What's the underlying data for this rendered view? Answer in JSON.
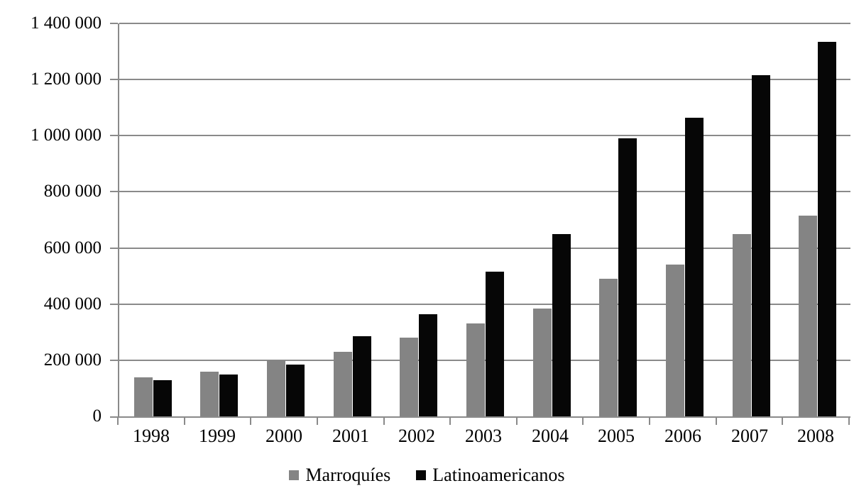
{
  "page": {
    "background_color": "#ffffff",
    "text_color": "#000000"
  },
  "chart_data": {
    "type": "bar",
    "title": "",
    "xlabel": "",
    "ylabel": "",
    "categories": [
      "1998",
      "1999",
      "2000",
      "2001",
      "2002",
      "2003",
      "2004",
      "2005",
      "2006",
      "2007",
      "2008"
    ],
    "series": [
      {
        "name": "Marroquíes",
        "color": "#848484",
        "values": [
          140000,
          160000,
          200000,
          230000,
          280000,
          330000,
          385000,
          490000,
          540000,
          650000,
          715000
        ]
      },
      {
        "name": "Latinoamericanos",
        "color": "#060606",
        "values": [
          130000,
          150000,
          185000,
          285000,
          365000,
          515000,
          650000,
          990000,
          1065000,
          1215000,
          1335000
        ]
      }
    ],
    "ylim": [
      0,
      1400000
    ],
    "y_tick_step": 200000,
    "y_ticks": [
      0,
      200000,
      400000,
      600000,
      800000,
      1000000,
      1200000,
      1400000
    ],
    "y_tick_labels": [
      "0",
      "200 000",
      "400 000",
      "600 000",
      "800 000",
      "1 000 000",
      "1 200 000",
      "1 400 000"
    ],
    "grid": "horizontal",
    "gridline_color": "#8a8a8a",
    "axis_color": "#8a8a8a",
    "legend_position": "bottom"
  }
}
